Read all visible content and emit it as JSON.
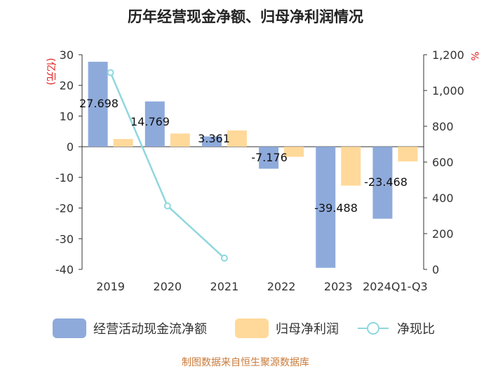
{
  "title": "历年经营现金净额、归母净利润情况",
  "source": "制图数据来自恒生聚源数据库",
  "chart_data": {
    "type": "bar",
    "categories": [
      "2019",
      "2020",
      "2021",
      "2022",
      "2023",
      "2024Q1-Q3"
    ],
    "series": [
      {
        "name": "经营活动现金流净额",
        "kind": "bar",
        "axis": "left",
        "color": "#8eaadb",
        "values": [
          27.698,
          14.769,
          3.361,
          -7.176,
          -39.488,
          -23.468
        ],
        "labels": [
          "27.698",
          "14.769",
          "3.361",
          "-7.176",
          "-39.488",
          "-23.468"
        ]
      },
      {
        "name": "归母净利润",
        "kind": "bar",
        "axis": "left",
        "color": "#ffd99a",
        "values": [
          2.5,
          4.3,
          5.3,
          -3.3,
          -12.7,
          -4.8
        ]
      },
      {
        "name": "净现比",
        "kind": "line",
        "axis": "right",
        "color": "#8fd7de",
        "values": [
          1100,
          355,
          63,
          null,
          null,
          null
        ]
      }
    ],
    "left_axis": {
      "unit": "(亿元)",
      "range": [
        -40,
        30
      ],
      "ticks": [
        30,
        20,
        10,
        0,
        -10,
        -20,
        -30,
        -40
      ]
    },
    "right_axis": {
      "unit": "%",
      "range": [
        0,
        1200
      ],
      "ticks": [
        0,
        200,
        400,
        600,
        800,
        "1,000",
        "1,200"
      ]
    },
    "legend_position": "bottom",
    "grid": false
  }
}
